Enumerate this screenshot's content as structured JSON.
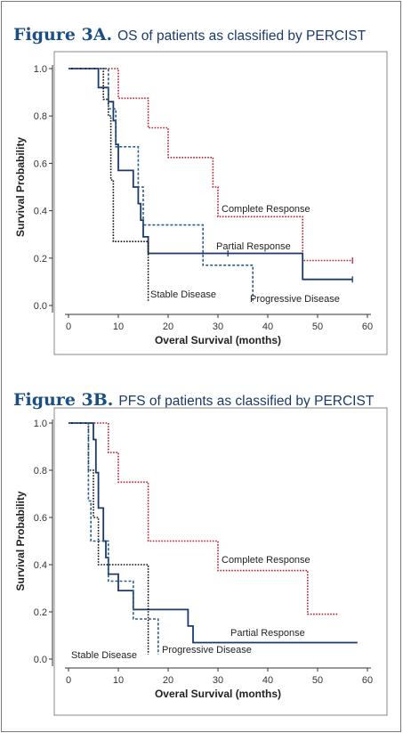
{
  "chart_data": [
    {
      "type": "line",
      "figure_label": "Figure 3A.",
      "title": "OS of patients as classified by PERCIST",
      "xlabel": "Overal Survival (months)",
      "ylabel": "Survival Probability",
      "xlim": [
        0,
        60
      ],
      "ylim": [
        0,
        1.0
      ],
      "xticks": [
        "0",
        "10",
        "20",
        "30",
        "40",
        "50",
        "60"
      ],
      "yticks": [
        "0.0",
        "0.2",
        "0.4",
        "0.6",
        "0.8",
        "1.0"
      ],
      "grid": false,
      "legend": "inline labels",
      "series": [
        {
          "name": "Complete Response",
          "color": "#b8202b",
          "dash": "dotted",
          "points": [
            [
              0,
              1.0
            ],
            [
              10,
              1.0
            ],
            [
              10,
              0.875
            ],
            [
              16,
              0.875
            ],
            [
              16,
              0.75
            ],
            [
              20,
              0.75
            ],
            [
              20,
              0.625
            ],
            [
              29,
              0.625
            ],
            [
              29,
              0.5
            ],
            [
              30,
              0.5
            ],
            [
              30,
              0.375
            ],
            [
              47,
              0.375
            ],
            [
              47,
              0.19
            ],
            [
              57,
              0.19
            ]
          ],
          "censor": [
            [
              57,
              0.19
            ]
          ]
        },
        {
          "name": "Partial Response",
          "color": "#1b3a6b",
          "dash": "solid",
          "points": [
            [
              0,
              1.0
            ],
            [
              6,
              1.0
            ],
            [
              6,
              0.92
            ],
            [
              8,
              0.92
            ],
            [
              8,
              0.86
            ],
            [
              9,
              0.86
            ],
            [
              9,
              0.78
            ],
            [
              9.5,
              0.78
            ],
            [
              9.5,
              0.68
            ],
            [
              10,
              0.68
            ],
            [
              10,
              0.57
            ],
            [
              13,
              0.57
            ],
            [
              13,
              0.5
            ],
            [
              14,
              0.5
            ],
            [
              14,
              0.43
            ],
            [
              14.5,
              0.43
            ],
            [
              14.5,
              0.36
            ],
            [
              15,
              0.36
            ],
            [
              15,
              0.29
            ],
            [
              16,
              0.29
            ],
            [
              16,
              0.22
            ],
            [
              47,
              0.22
            ],
            [
              47,
              0.11
            ],
            [
              57,
              0.11
            ]
          ],
          "censor": [
            [
              32,
              0.22
            ],
            [
              57,
              0.11
            ]
          ]
        },
        {
          "name": "Stable Disease",
          "color": "#111111",
          "dash": "dotted",
          "points": [
            [
              0,
              1.0
            ],
            [
              7,
              1.0
            ],
            [
              7,
              0.87
            ],
            [
              8,
              0.87
            ],
            [
              8,
              0.8
            ],
            [
              8.5,
              0.8
            ],
            [
              8.5,
              0.53
            ],
            [
              9,
              0.53
            ],
            [
              9,
              0.27
            ],
            [
              16,
              0.27
            ],
            [
              16,
              0.02
            ]
          ],
          "censor": []
        },
        {
          "name": "Progressive Disease",
          "color": "#2e5f8a",
          "dash": "dashed",
          "points": [
            [
              0,
              1.0
            ],
            [
              8,
              1.0
            ],
            [
              8,
              0.83
            ],
            [
              9.5,
              0.83
            ],
            [
              9.5,
              0.67
            ],
            [
              14,
              0.67
            ],
            [
              14,
              0.5
            ],
            [
              15,
              0.5
            ],
            [
              15,
              0.34
            ],
            [
              27,
              0.34
            ],
            [
              27,
              0.17
            ],
            [
              37,
              0.17
            ],
            [
              37,
              0.01
            ]
          ],
          "censor": []
        }
      ]
    },
    {
      "type": "line",
      "figure_label": "Figure 3B.",
      "title": "PFS of patients as classified by PERCIST",
      "xlabel": "Overal Survival (months)",
      "ylabel": "Survival Probability",
      "xlim": [
        0,
        60
      ],
      "ylim": [
        0,
        1.0
      ],
      "xticks": [
        "0",
        "10",
        "20",
        "30",
        "40",
        "50",
        "60"
      ],
      "yticks": [
        "0.0",
        "0.2",
        "0.4",
        "0.6",
        "0.8",
        "1.0"
      ],
      "grid": false,
      "legend": "inline labels",
      "series": [
        {
          "name": "Complete Response",
          "color": "#b8202b",
          "dash": "dotted",
          "points": [
            [
              0,
              1.0
            ],
            [
              8,
              1.0
            ],
            [
              8,
              0.875
            ],
            [
              10,
              0.875
            ],
            [
              10,
              0.75
            ],
            [
              16,
              0.75
            ],
            [
              16,
              0.5
            ],
            [
              30,
              0.5
            ],
            [
              30,
              0.375
            ],
            [
              48,
              0.375
            ],
            [
              48,
              0.19
            ],
            [
              54,
              0.19
            ]
          ],
          "censor": []
        },
        {
          "name": "Partial Response",
          "color": "#1b3a6b",
          "dash": "solid",
          "points": [
            [
              0,
              1.0
            ],
            [
              5,
              1.0
            ],
            [
              5,
              0.93
            ],
            [
              5.5,
              0.93
            ],
            [
              5.5,
              0.79
            ],
            [
              6,
              0.79
            ],
            [
              6,
              0.64
            ],
            [
              7,
              0.64
            ],
            [
              7,
              0.5
            ],
            [
              7.5,
              0.5
            ],
            [
              7.5,
              0.43
            ],
            [
              8,
              0.43
            ],
            [
              8,
              0.36
            ],
            [
              10,
              0.36
            ],
            [
              10,
              0.29
            ],
            [
              13,
              0.29
            ],
            [
              13,
              0.21
            ],
            [
              24,
              0.21
            ],
            [
              24,
              0.14
            ],
            [
              25,
              0.14
            ],
            [
              25,
              0.07
            ],
            [
              58,
              0.07
            ]
          ],
          "censor": []
        },
        {
          "name": "Stable Disease",
          "color": "#111111",
          "dash": "dotted",
          "points": [
            [
              0,
              1.0
            ],
            [
              4,
              1.0
            ],
            [
              4,
              0.8
            ],
            [
              5,
              0.8
            ],
            [
              5,
              0.6
            ],
            [
              6,
              0.6
            ],
            [
              6,
              0.4
            ],
            [
              16,
              0.4
            ],
            [
              16,
              0.02
            ]
          ],
          "censor": []
        },
        {
          "name": "Progressive Disease",
          "color": "#2e5f8a",
          "dash": "dashed",
          "points": [
            [
              0,
              1.0
            ],
            [
              4,
              1.0
            ],
            [
              4,
              0.67
            ],
            [
              4.5,
              0.67
            ],
            [
              4.5,
              0.5
            ],
            [
              8,
              0.5
            ],
            [
              8,
              0.33
            ],
            [
              13,
              0.33
            ],
            [
              13,
              0.17
            ],
            [
              18,
              0.17
            ],
            [
              18,
              0.02
            ]
          ],
          "censor": []
        }
      ]
    }
  ]
}
